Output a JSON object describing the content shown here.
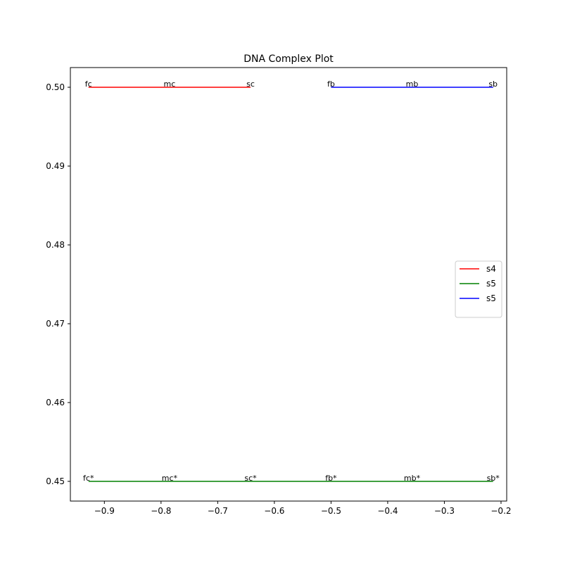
{
  "chart_data": {
    "type": "line",
    "title": "DNA Complex Plot",
    "xlabel": "",
    "ylabel": "",
    "xlim": [
      -0.96,
      -0.19
    ],
    "ylim": [
      0.4475,
      0.5025
    ],
    "xticks": [
      -0.9,
      -0.8,
      -0.7,
      -0.6,
      -0.5,
      -0.4,
      -0.3,
      -0.2
    ],
    "xtick_labels": [
      "−0.9",
      "−0.8",
      "−0.7",
      "−0.6",
      "−0.5",
      "−0.4",
      "−0.3",
      "−0.2"
    ],
    "yticks": [
      0.45,
      0.46,
      0.47,
      0.48,
      0.49,
      0.5
    ],
    "ytick_labels": [
      "0.45",
      "0.46",
      "0.47",
      "0.48",
      "0.49",
      "0.50"
    ],
    "grid": false,
    "legend_position": "center-right",
    "series": [
      {
        "name": "s4",
        "color": "#ff0000",
        "x": [
          -0.928,
          -0.642
        ],
        "y": [
          0.5,
          0.5
        ],
        "labels": [
          {
            "text": "fc",
            "x": -0.928,
            "y": 0.5
          },
          {
            "text": "mc",
            "x": -0.785,
            "y": 0.5
          },
          {
            "text": "sc",
            "x": -0.642,
            "y": 0.5
          }
        ]
      },
      {
        "name": "s5",
        "color": "#008000",
        "x": [
          -0.928,
          -0.214
        ],
        "y": [
          0.45,
          0.45
        ],
        "labels": [
          {
            "text": "fc*",
            "x": -0.928,
            "y": 0.45
          },
          {
            "text": "mc*",
            "x": -0.785,
            "y": 0.45
          },
          {
            "text": "sc*",
            "x": -0.642,
            "y": 0.45
          },
          {
            "text": "fb*",
            "x": -0.5,
            "y": 0.45
          },
          {
            "text": "mb*",
            "x": -0.357,
            "y": 0.45
          },
          {
            "text": "sb*",
            "x": -0.214,
            "y": 0.45
          }
        ]
      },
      {
        "name": "s5",
        "color": "#0000ff",
        "x": [
          -0.5,
          -0.214
        ],
        "y": [
          0.5,
          0.5
        ],
        "labels": [
          {
            "text": "fb",
            "x": -0.5,
            "y": 0.5
          },
          {
            "text": "mb",
            "x": -0.357,
            "y": 0.5
          },
          {
            "text": "sb",
            "x": -0.214,
            "y": 0.5
          }
        ]
      }
    ]
  }
}
